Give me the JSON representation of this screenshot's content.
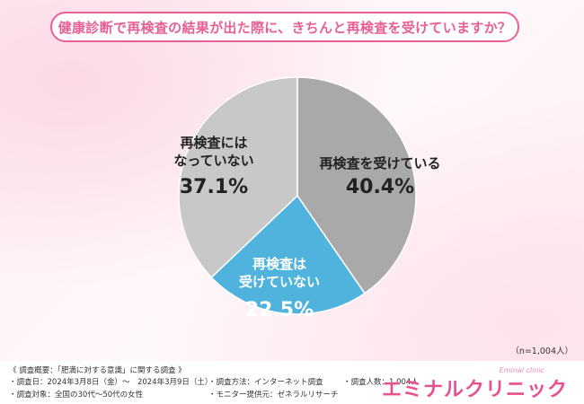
{
  "title": "健康診断で再検査の結果が出た際に、きちんと再検査を受けていますか？",
  "sample_size": "（n=1,004人）",
  "chart_data": {
    "type": "pie",
    "title": "健康診断で再検査の結果が出た際に、きちんと再検査を受けていますか？",
    "slices": [
      {
        "label": "再検査を受けている",
        "value": 40.4,
        "display": "40.4%",
        "color": "#a9a9a9"
      },
      {
        "label": "再検査は受けていない",
        "value": 22.5,
        "display": "22.5%",
        "color": "#4fb3de"
      },
      {
        "label": "再検査にはなっていない",
        "value": 37.1,
        "display": "37.1%",
        "color": "#c8c8c8"
      }
    ]
  },
  "footer": {
    "overview": "《 調査概要：「肥満に対する意識」に関する調査 》",
    "date": "・調査日：2024年3月8日（金）～　2024年3月9日（土）",
    "method": "・調査方法：インターネット調査",
    "count": "・調査人数：1,004人",
    "target": "・調査対象：全国の30代～50代の女性",
    "provider": "・モニター提供元：ゼネラルリサーチ"
  },
  "logo": {
    "main": "エミナルクリニック",
    "sub": "Eminal clinic"
  }
}
